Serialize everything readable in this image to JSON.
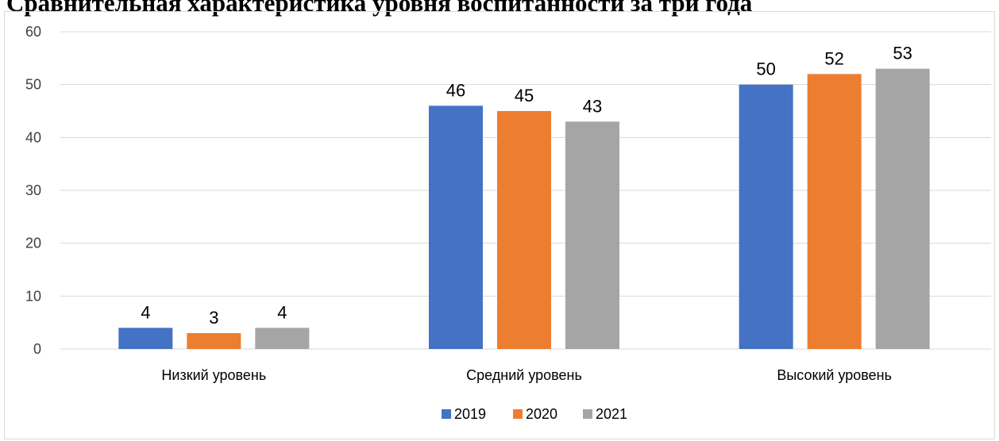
{
  "chart_data": {
    "type": "bar",
    "title": "Сравнительная характеристика уровня воспитанности за три года",
    "categories": [
      "Низкий уровень",
      "Средний уровень",
      "Высокий уровень"
    ],
    "series": [
      {
        "name": "2019",
        "values": [
          4,
          46,
          50
        ],
        "color": "#4472c4"
      },
      {
        "name": "2020",
        "values": [
          3,
          45,
          52
        ],
        "color": "#ed7d31"
      },
      {
        "name": "2021",
        "values": [
          4,
          43,
          53
        ],
        "color": "#a5a5a5"
      }
    ],
    "ylim": [
      0,
      60
    ],
    "yticks": [
      "0",
      "10",
      "20",
      "30",
      "40",
      "50",
      "60"
    ],
    "xlabel": "",
    "ylabel": "",
    "grid": true,
    "legend": "bottom"
  }
}
